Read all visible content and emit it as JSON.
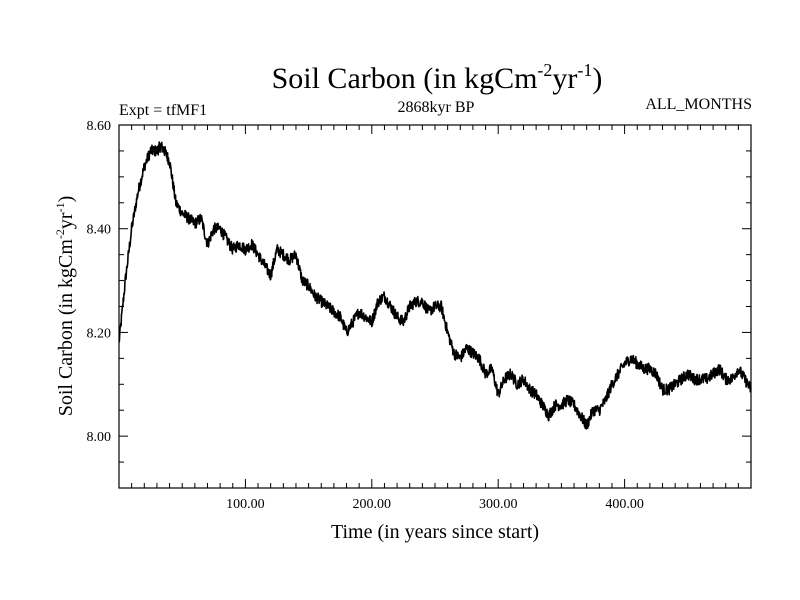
{
  "chart_data": {
    "type": "line",
    "title_main": "Soil Carbon (in kgCm",
    "title_exp1": "-2",
    "title_mid": "yr",
    "title_exp2": "-1",
    "title_close": ")",
    "subtitle_left": "Expt = tfMF1",
    "subtitle_center": "2868kyr BP",
    "subtitle_right": "ALL_MONTHS",
    "xlabel": "Time (in years since start)",
    "ylabel_main": "Soil Carbon (in kgCm",
    "ylabel_exp1": "-2",
    "ylabel_mid": "yr",
    "ylabel_exp2": "-1",
    "ylabel_close": ")",
    "xlim": [
      0,
      500
    ],
    "ylim": [
      7.9,
      8.6
    ],
    "x_ticks": [
      {
        "value": 100,
        "label": "100.00"
      },
      {
        "value": 200,
        "label": "200.00"
      },
      {
        "value": 300,
        "label": "300.00"
      },
      {
        "value": 400,
        "label": "400.00"
      }
    ],
    "y_ticks": [
      {
        "value": 8.0,
        "label": "8.00"
      },
      {
        "value": 8.2,
        "label": "8.20"
      },
      {
        "value": 8.4,
        "label": "8.40"
      },
      {
        "value": 8.6,
        "label": "8.60"
      }
    ],
    "series": [
      {
        "name": "Soil Carbon",
        "color": "#000000",
        "x": [
          0,
          5,
          10,
          15,
          20,
          25,
          30,
          33,
          36,
          40,
          45,
          50,
          55,
          60,
          65,
          70,
          75,
          80,
          85,
          90,
          95,
          100,
          105,
          110,
          115,
          120,
          125,
          130,
          135,
          140,
          145,
          150,
          155,
          160,
          165,
          170,
          175,
          180,
          185,
          190,
          195,
          200,
          205,
          210,
          215,
          220,
          225,
          230,
          235,
          240,
          245,
          250,
          255,
          260,
          265,
          270,
          275,
          280,
          285,
          290,
          295,
          300,
          305,
          310,
          315,
          320,
          325,
          330,
          335,
          340,
          345,
          350,
          355,
          360,
          365,
          370,
          375,
          380,
          385,
          390,
          395,
          400,
          405,
          410,
          415,
          420,
          425,
          430,
          435,
          440,
          445,
          450,
          455,
          460,
          465,
          470,
          475,
          480,
          485,
          490,
          495,
          500
        ],
        "y": [
          8.18,
          8.3,
          8.4,
          8.47,
          8.52,
          8.55,
          8.55,
          8.56,
          8.55,
          8.53,
          8.45,
          8.43,
          8.42,
          8.41,
          8.42,
          8.37,
          8.4,
          8.4,
          8.38,
          8.36,
          8.37,
          8.36,
          8.37,
          8.35,
          8.33,
          8.31,
          8.36,
          8.35,
          8.34,
          8.35,
          8.3,
          8.29,
          8.27,
          8.26,
          8.25,
          8.24,
          8.23,
          8.2,
          8.22,
          8.24,
          8.23,
          8.22,
          8.26,
          8.27,
          8.25,
          8.23,
          8.22,
          8.25,
          8.26,
          8.26,
          8.24,
          8.25,
          8.25,
          8.2,
          8.16,
          8.15,
          8.17,
          8.16,
          8.15,
          8.12,
          8.13,
          8.08,
          8.11,
          8.12,
          8.1,
          8.11,
          8.09,
          8.08,
          8.06,
          8.04,
          8.06,
          8.06,
          8.07,
          8.06,
          8.04,
          8.02,
          8.05,
          8.05,
          8.07,
          8.1,
          8.12,
          8.14,
          8.15,
          8.14,
          8.13,
          8.13,
          8.12,
          8.09,
          8.09,
          8.1,
          8.11,
          8.12,
          8.11,
          8.11,
          8.11,
          8.12,
          8.13,
          8.11,
          8.11,
          8.13,
          8.11,
          8.09
        ]
      }
    ]
  }
}
